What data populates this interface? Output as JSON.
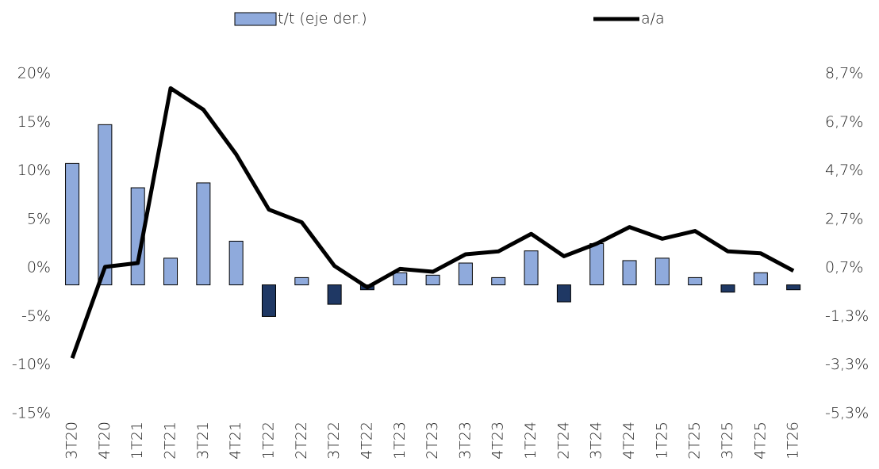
{
  "chart_data": {
    "type": "bar-line",
    "legend": "top",
    "categories": [
      "3T20",
      "4T20",
      "1T21",
      "2T21",
      "3T21",
      "4T21",
      "1T22",
      "2T22",
      "3T22",
      "4T22",
      "1T23",
      "2T23",
      "3T23",
      "4T23",
      "1T24",
      "2T24",
      "3T24",
      "4T24",
      "1T25",
      "2T25",
      "3T25",
      "4T25",
      "1T26"
    ],
    "series": [
      {
        "name": "t/t (eje der.)",
        "type": "bar",
        "axis": "y2",
        "color": "#8faadc",
        "negative_color": "#1f3864",
        "values": [
          5.0,
          6.6,
          4.0,
          1.1,
          4.2,
          1.8,
          -1.3,
          0.3,
          -0.8,
          -0.2,
          0.5,
          0.4,
          0.9,
          0.3,
          1.4,
          -0.7,
          1.7,
          1.0,
          1.1,
          0.3,
          -0.3,
          0.5,
          -0.2
        ]
      },
      {
        "name": "a/a",
        "type": "line",
        "color": "#000000",
        "values": [
          -9.3,
          0.1,
          0.5,
          18.5,
          16.3,
          11.7,
          6.0,
          4.7,
          0.2,
          -2.0,
          -0.1,
          -0.4,
          1.4,
          1.7,
          3.5,
          1.2,
          2.5,
          4.2,
          3.0,
          3.8,
          1.7,
          1.5,
          -0.3
        ]
      }
    ],
    "ylim": [
      -15,
      20
    ],
    "yticks": [
      {
        "value": 20,
        "label": "20%"
      },
      {
        "value": 15,
        "label": "15%"
      },
      {
        "value": 10,
        "label": "10%"
      },
      {
        "value": 5,
        "label": "5%"
      },
      {
        "value": 0,
        "label": "0%"
      },
      {
        "value": -5,
        "label": "-5%"
      },
      {
        "value": -10,
        "label": "-10%"
      },
      {
        "value": -15,
        "label": "-15%"
      }
    ],
    "y2lim": [
      -5.3,
      8.7
    ],
    "y2ticks": [
      {
        "value": 8.7,
        "label": "8,7%"
      },
      {
        "value": 6.7,
        "label": "6,7%"
      },
      {
        "value": 4.7,
        "label": "4,7%"
      },
      {
        "value": 2.7,
        "label": "2,7%"
      },
      {
        "value": 0.7,
        "label": "0,7%"
      },
      {
        "value": -1.3,
        "label": "-1,3%"
      },
      {
        "value": -3.3,
        "label": "-3,3%"
      },
      {
        "value": -5.3,
        "label": "-5,3%"
      }
    ]
  }
}
